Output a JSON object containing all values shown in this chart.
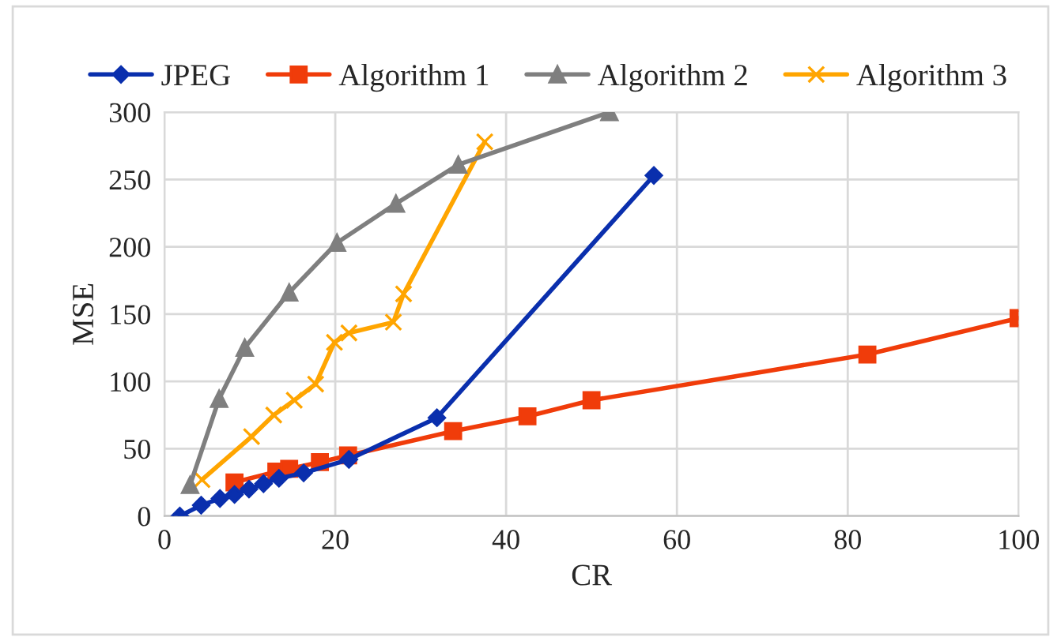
{
  "chart_data": {
    "type": "line",
    "xlabel": "CR",
    "ylabel": "MSE",
    "xlim": [
      0,
      100
    ],
    "ylim": [
      0,
      300
    ],
    "xticks": [
      0,
      20,
      40,
      60,
      80,
      100
    ],
    "yticks": [
      0,
      50,
      100,
      150,
      200,
      250,
      300
    ],
    "grid": true,
    "legend": "top",
    "series": [
      {
        "name": "JPEG",
        "color": "#0a2fad",
        "marker": "diamond",
        "x": [
          1.8,
          4.3,
          6.5,
          8.2,
          9.9,
          11.6,
          13.4,
          16.3,
          21.6,
          31.9,
          57.3
        ],
        "values": [
          0,
          8,
          13,
          16,
          20,
          24,
          28,
          32,
          42,
          73,
          253
        ]
      },
      {
        "name": "Algorithm 1",
        "color": "#f03c0a",
        "marker": "square",
        "x": [
          8.2,
          13.1,
          14.6,
          18.2,
          21.5,
          33.8,
          42.5,
          50,
          82.3,
          100
        ],
        "values": [
          25,
          33,
          35,
          40,
          45,
          63,
          74,
          86,
          120,
          147
        ]
      },
      {
        "name": "Algorithm 2",
        "color": "#7f7f7f",
        "marker": "triangle",
        "x": [
          3.0,
          6.4,
          9.4,
          14.6,
          20.2,
          27.1,
          34.4,
          52.1
        ],
        "values": [
          23,
          87,
          125,
          166,
          203,
          232,
          261,
          300
        ]
      },
      {
        "name": "Algorithm 3",
        "color": "#ffa500",
        "marker": "cross",
        "x": [
          4.4,
          10.2,
          12.8,
          15.2,
          17.7,
          19.9,
          21.6,
          26.8,
          28.0,
          37.5
        ],
        "values": [
          27,
          59,
          75,
          86,
          98,
          129,
          136,
          144,
          165,
          278
        ]
      }
    ]
  }
}
